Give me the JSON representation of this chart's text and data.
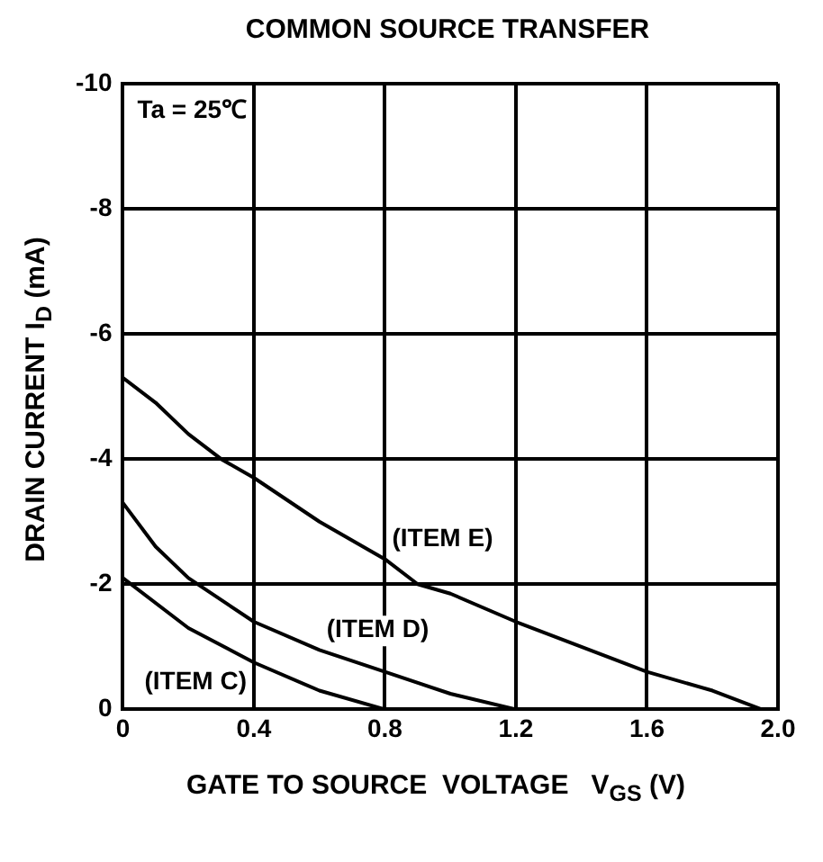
{
  "chart_data": {
    "type": "line",
    "title": "COMMON SOURCE TRANSFER",
    "xlabel": "GATE TO SOURCE  VOLTAGE   V$_{GS}$ (V)",
    "ylabel": "DRAIN CURRENT  I$_{D}$ (mA)",
    "annotations": [
      "Ta = 25℃"
    ],
    "xlim": [
      0,
      2.0
    ],
    "xticks": [
      0,
      0.4,
      0.8,
      1.2,
      1.6,
      {
        "value": 2,
        "label": "2.0"
      }
    ],
    "ylim": [
      0,
      -10
    ],
    "yticks": [
      0,
      -2,
      -4,
      -6,
      -8,
      -10
    ],
    "grid": true,
    "marker": "none",
    "line_style": "solid",
    "legend": false,
    "series": [
      {
        "name": "(ITEM E)",
        "color": "#000000",
        "x": [
          0,
          0.1,
          0.2,
          0.3,
          0.4,
          0.6,
          0.8,
          0.9,
          1.0,
          1.2,
          1.4,
          1.6,
          1.8,
          1.95
        ],
        "values": [
          -5.3,
          -4.9,
          -4.4,
          -4.0,
          -3.7,
          -3.0,
          -2.4,
          -2.0,
          -1.85,
          -1.4,
          -1.0,
          -0.6,
          -0.3,
          0
        ]
      },
      {
        "name": "(ITEM D)",
        "color": "#000000",
        "x": [
          0,
          0.1,
          0.2,
          0.4,
          0.6,
          0.8,
          1.0,
          1.2
        ],
        "values": [
          -3.3,
          -2.6,
          -2.1,
          -1.4,
          -0.95,
          -0.6,
          -0.25,
          0
        ]
      },
      {
        "name": "(ITEM C)",
        "color": "#000000",
        "x": [
          0,
          0.2,
          0.4,
          0.6,
          0.8
        ],
        "values": [
          -2.1,
          -1.3,
          -0.75,
          -0.3,
          0
        ]
      }
    ]
  }
}
